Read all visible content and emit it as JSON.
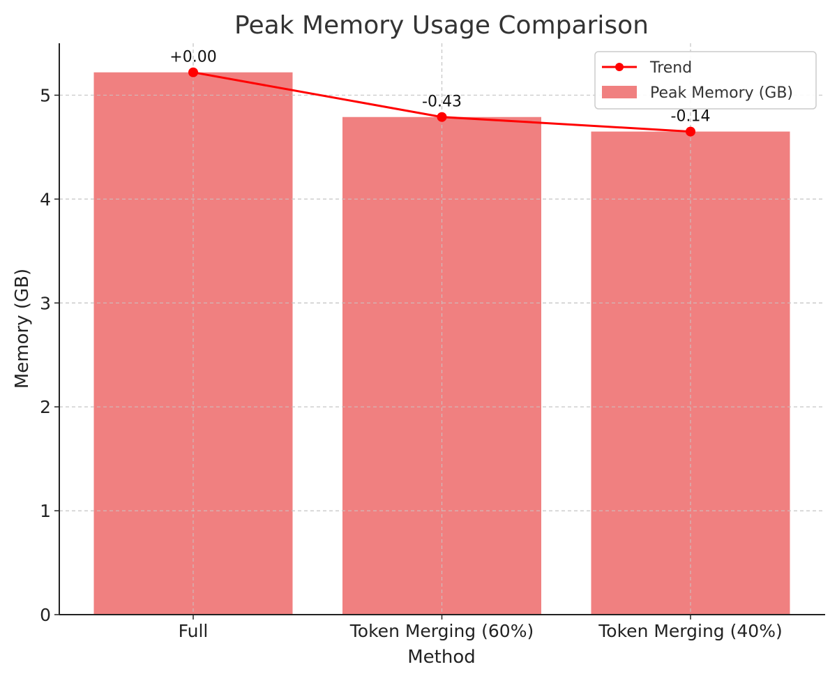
{
  "chart_data": {
    "type": "bar",
    "title": "Peak Memory Usage Comparison",
    "xlabel": "Method",
    "ylabel": "Memory (GB)",
    "categories": [
      "Full",
      "Token Merging (60%)",
      "Token Merging (40%)"
    ],
    "series": [
      {
        "name": "Peak Memory (GB)",
        "type": "bar",
        "values": [
          5.22,
          4.79,
          4.65
        ],
        "color": "#f08080"
      },
      {
        "name": "Trend",
        "type": "line",
        "values": [
          5.22,
          4.79,
          4.65
        ],
        "color": "#ff0000",
        "marker": "circle"
      }
    ],
    "data_labels": [
      "+0.00",
      "-0.43",
      "-0.14"
    ],
    "ylim": [
      0,
      5.5
    ],
    "yticks": [
      0,
      1,
      2,
      3,
      4,
      5
    ],
    "grid": true,
    "grid_style": "dashed",
    "legend_position": "top-right",
    "legend": [
      "Trend",
      "Peak Memory (GB)"
    ]
  }
}
